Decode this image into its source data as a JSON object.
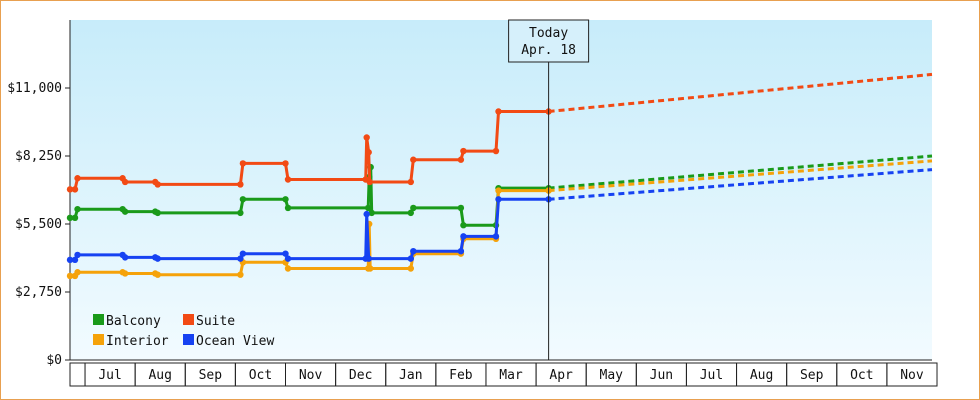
{
  "chart_data": {
    "type": "line",
    "ylim": [
      0,
      13750
    ],
    "y_ticks": [
      {
        "value": 0,
        "label": "$0"
      },
      {
        "value": 2750,
        "label": "$2,750"
      },
      {
        "value": 5500,
        "label": "$5,500"
      },
      {
        "value": 8250,
        "label": "$8,250"
      },
      {
        "value": 11000,
        "label": "$11,000"
      }
    ],
    "x_range": [
      0,
      17.2
    ],
    "months": [
      "Jul",
      "Aug",
      "Sep",
      "Oct",
      "Nov",
      "Dec",
      "Jan",
      "Feb",
      "Mar",
      "Apr",
      "May",
      "Jun",
      "Jul",
      "Aug",
      "Sep",
      "Oct",
      "Nov"
    ],
    "today": {
      "x": 9.55,
      "line1": "Today",
      "line2": "Apr. 18"
    },
    "legend_position": "bottom-left",
    "grid": false,
    "series": [
      {
        "name": "Balcony",
        "color": "#1a9a1a",
        "points": [
          [
            0,
            5750
          ],
          [
            0.1,
            5750
          ],
          [
            0.15,
            6100
          ],
          [
            1.05,
            6100
          ],
          [
            1.1,
            6000
          ],
          [
            1.7,
            6000
          ],
          [
            1.75,
            5950
          ],
          [
            3.4,
            5950
          ],
          [
            3.45,
            6500
          ],
          [
            4.3,
            6500
          ],
          [
            4.35,
            6150
          ],
          [
            5.95,
            6150
          ],
          [
            5.97,
            7400
          ],
          [
            6.0,
            7800
          ],
          [
            6.02,
            5950
          ],
          [
            6.8,
            5950
          ],
          [
            6.85,
            6150
          ],
          [
            7.8,
            6150
          ],
          [
            7.85,
            5450
          ],
          [
            8.5,
            5450
          ],
          [
            8.55,
            6950
          ],
          [
            9.55,
            6950
          ]
        ],
        "projection": [
          [
            9.55,
            6950
          ],
          [
            17.2,
            8250
          ]
        ]
      },
      {
        "name": "Suite",
        "color": "#f24a14",
        "points": [
          [
            0,
            6900
          ],
          [
            0.1,
            6900
          ],
          [
            0.15,
            7350
          ],
          [
            1.05,
            7350
          ],
          [
            1.1,
            7200
          ],
          [
            1.7,
            7200
          ],
          [
            1.75,
            7100
          ],
          [
            3.4,
            7100
          ],
          [
            3.45,
            7950
          ],
          [
            4.3,
            7950
          ],
          [
            4.35,
            7300
          ],
          [
            5.9,
            7300
          ],
          [
            5.92,
            9000
          ],
          [
            5.96,
            8400
          ],
          [
            5.98,
            7200
          ],
          [
            6.8,
            7200
          ],
          [
            6.85,
            8100
          ],
          [
            7.8,
            8100
          ],
          [
            7.85,
            8450
          ],
          [
            8.5,
            8450
          ],
          [
            8.55,
            10050
          ],
          [
            9.55,
            10050
          ]
        ],
        "projection": [
          [
            9.55,
            10050
          ],
          [
            17.2,
            11550
          ]
        ]
      },
      {
        "name": "Interior",
        "color": "#f5a20a",
        "points": [
          [
            0,
            3400
          ],
          [
            0.1,
            3400
          ],
          [
            0.15,
            3550
          ],
          [
            1.05,
            3550
          ],
          [
            1.1,
            3500
          ],
          [
            1.7,
            3500
          ],
          [
            1.75,
            3450
          ],
          [
            3.4,
            3450
          ],
          [
            3.45,
            3950
          ],
          [
            4.3,
            3950
          ],
          [
            4.35,
            3700
          ],
          [
            5.95,
            3700
          ],
          [
            5.97,
            5500
          ],
          [
            5.99,
            3700
          ],
          [
            6.8,
            3700
          ],
          [
            6.85,
            4300
          ],
          [
            7.8,
            4300
          ],
          [
            7.85,
            4900
          ],
          [
            8.5,
            4900
          ],
          [
            8.55,
            6850
          ],
          [
            9.55,
            6850
          ]
        ],
        "projection": [
          [
            9.55,
            6850
          ],
          [
            17.2,
            8050
          ]
        ]
      },
      {
        "name": "Ocean View",
        "color": "#1642f2",
        "points": [
          [
            0,
            4050
          ],
          [
            0.1,
            4050
          ],
          [
            0.15,
            4250
          ],
          [
            1.05,
            4250
          ],
          [
            1.1,
            4150
          ],
          [
            1.7,
            4150
          ],
          [
            1.75,
            4100
          ],
          [
            3.4,
            4100
          ],
          [
            3.45,
            4300
          ],
          [
            4.3,
            4300
          ],
          [
            4.35,
            4100
          ],
          [
            5.9,
            4100
          ],
          [
            5.92,
            5900
          ],
          [
            5.96,
            4100
          ],
          [
            6.8,
            4100
          ],
          [
            6.85,
            4400
          ],
          [
            7.8,
            4400
          ],
          [
            7.85,
            5000
          ],
          [
            8.5,
            5000
          ],
          [
            8.55,
            6500
          ],
          [
            9.55,
            6500
          ]
        ],
        "projection": [
          [
            9.55,
            6500
          ],
          [
            17.2,
            7700
          ]
        ]
      }
    ]
  }
}
